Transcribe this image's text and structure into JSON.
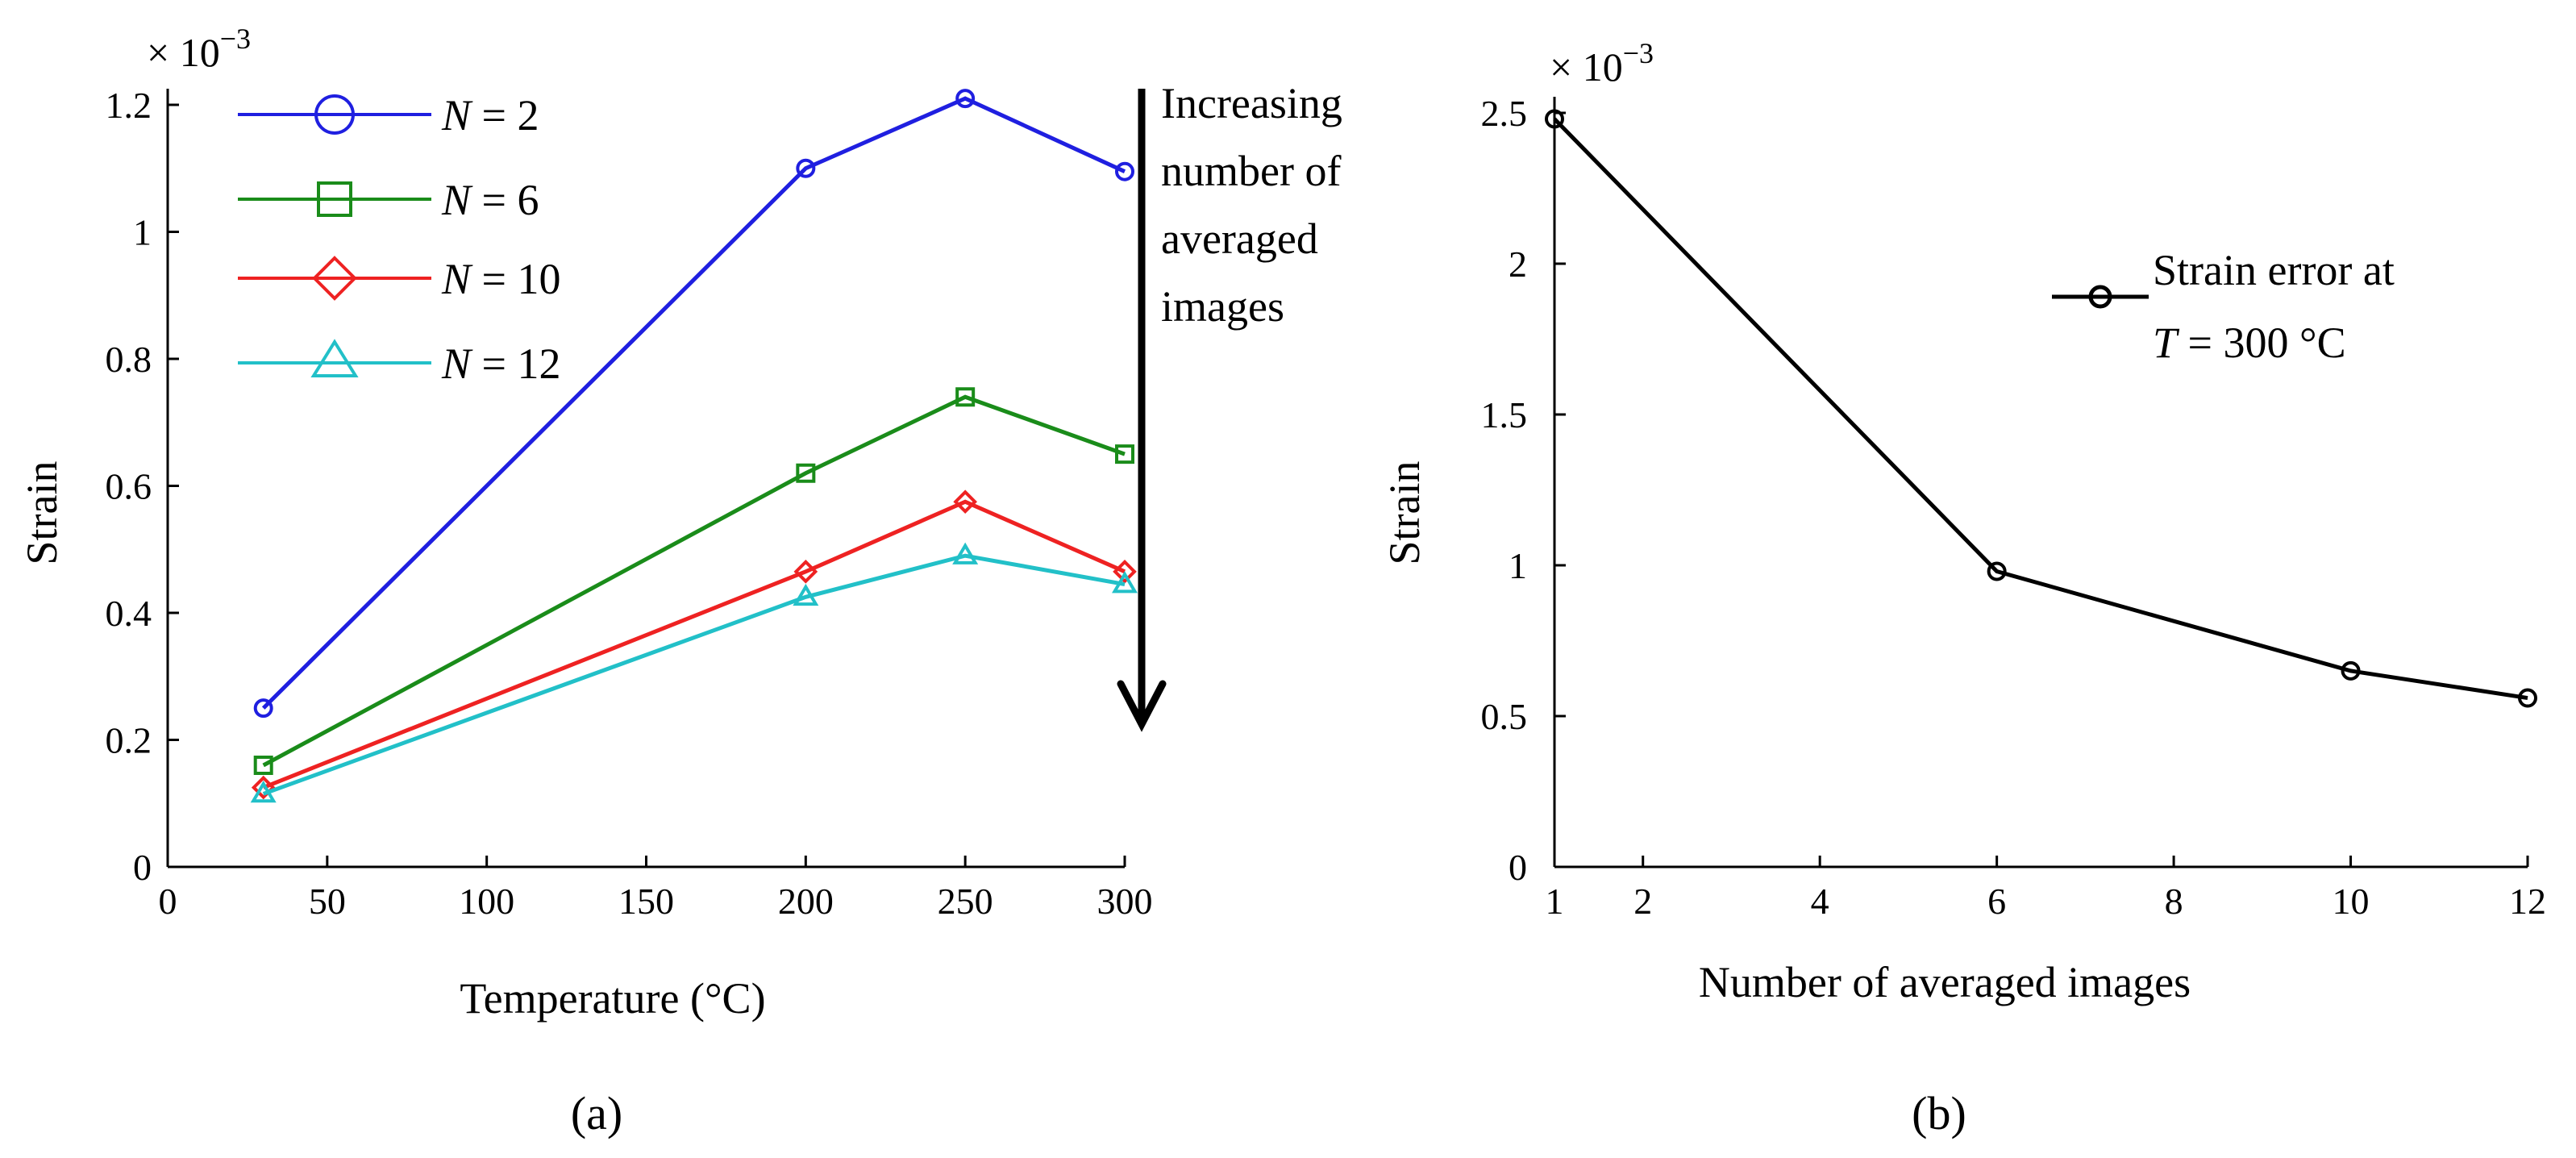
{
  "chart_data": [
    {
      "type": "line",
      "panel_label": "(a)",
      "title": "",
      "xlabel": "Temperature (°C)",
      "ylabel": "Strain",
      "y_multiplier": "× 10",
      "y_multiplier_exp": "−3",
      "xlim": [
        0,
        300
      ],
      "ylim": [
        0,
        1.2
      ],
      "xticks": [
        0,
        50,
        100,
        150,
        200,
        250,
        300
      ],
      "yticks": [
        0,
        0.2,
        0.4,
        0.6,
        0.8,
        1,
        1.2
      ],
      "ytick_labels": [
        "0",
        "0.2",
        "0.4",
        "0.6",
        "0.8",
        "1",
        "1.2"
      ],
      "x": [
        30,
        200,
        250,
        300
      ],
      "legend_position": "top-left",
      "series": [
        {
          "name": "N = 2",
          "legend_N": "N",
          "legend_value": " = 2",
          "color": "#1f1fe0",
          "marker": "circle",
          "values": [
            0.25,
            1.1,
            1.21,
            1.095
          ]
        },
        {
          "name": "N = 6",
          "legend_N": "N",
          "legend_value": " = 6",
          "color": "#1a8c1a",
          "marker": "square",
          "values": [
            0.16,
            0.62,
            0.74,
            0.65
          ]
        },
        {
          "name": "N = 10",
          "legend_N": "N",
          "legend_value": " = 10",
          "color": "#ee2222",
          "marker": "diamond",
          "values": [
            0.125,
            0.465,
            0.575,
            0.465
          ]
        },
        {
          "name": "N = 12",
          "legend_N": "N",
          "legend_value": " = 12",
          "color": "#22c0c8",
          "marker": "triangle",
          "values": [
            0.115,
            0.425,
            0.49,
            0.445
          ]
        }
      ],
      "annotation": {
        "lines": [
          "Increasing",
          "number of",
          "averaged",
          "images"
        ],
        "arrow": "down"
      }
    },
    {
      "type": "line",
      "panel_label": "(b)",
      "title": "",
      "xlabel": "Number of averaged images",
      "ylabel": "Strain",
      "y_multiplier": "× 10",
      "y_multiplier_exp": "−3",
      "xlim": [
        1,
        12
      ],
      "ylim": [
        0,
        2.5
      ],
      "xticks": [
        1,
        2,
        4,
        6,
        8,
        10,
        12
      ],
      "yticks": [
        0,
        0.5,
        1,
        1.5,
        2,
        2.5
      ],
      "ytick_labels": [
        "0",
        "0.5",
        "1",
        "1.5",
        "2",
        "2.5"
      ],
      "legend_position": "upper-right",
      "series": [
        {
          "name": "Strain error at T = 300 °C",
          "legend_line1": "Strain error at",
          "legend_T": "T",
          "legend_line2_rest": " = 300 °C",
          "color": "#000000",
          "marker": "circle",
          "x": [
            1,
            6,
            10,
            12
          ],
          "values": [
            2.48,
            0.98,
            0.65,
            0.56
          ]
        }
      ]
    }
  ]
}
